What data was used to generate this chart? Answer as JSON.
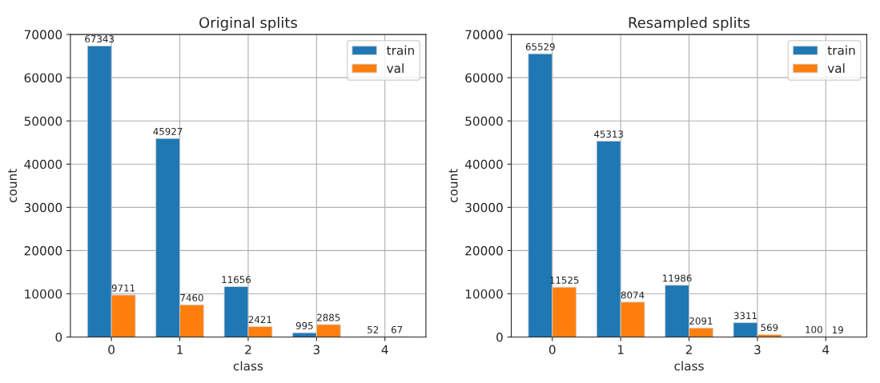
{
  "chart_data": [
    {
      "type": "bar",
      "title": "Original splits",
      "xlabel": "class",
      "ylabel": "count",
      "categories": [
        "0",
        "1",
        "2",
        "3",
        "4"
      ],
      "series": [
        {
          "name": "train",
          "color": "#1f77b4",
          "values": [
            67343,
            45927,
            11656,
            995,
            52
          ]
        },
        {
          "name": "val",
          "color": "#ff7f0e",
          "values": [
            9711,
            7460,
            2421,
            2885,
            67
          ]
        }
      ],
      "ylim": [
        0,
        70000
      ],
      "yticks": [
        0,
        10000,
        20000,
        30000,
        40000,
        50000,
        60000,
        70000
      ],
      "grid": true,
      "legend": "top right",
      "data_labels": true
    },
    {
      "type": "bar",
      "title": "Resampled splits",
      "xlabel": "class",
      "ylabel": "count",
      "categories": [
        "0",
        "1",
        "2",
        "3",
        "4"
      ],
      "series": [
        {
          "name": "train",
          "color": "#1f77b4",
          "values": [
            65529,
            45313,
            11986,
            3311,
            100
          ]
        },
        {
          "name": "val",
          "color": "#ff7f0e",
          "values": [
            11525,
            8074,
            2091,
            569,
            19
          ]
        }
      ],
      "ylim": [
        0,
        70000
      ],
      "yticks": [
        0,
        10000,
        20000,
        30000,
        40000,
        50000,
        60000,
        70000
      ],
      "grid": true,
      "legend": "top right",
      "data_labels": true
    }
  ]
}
